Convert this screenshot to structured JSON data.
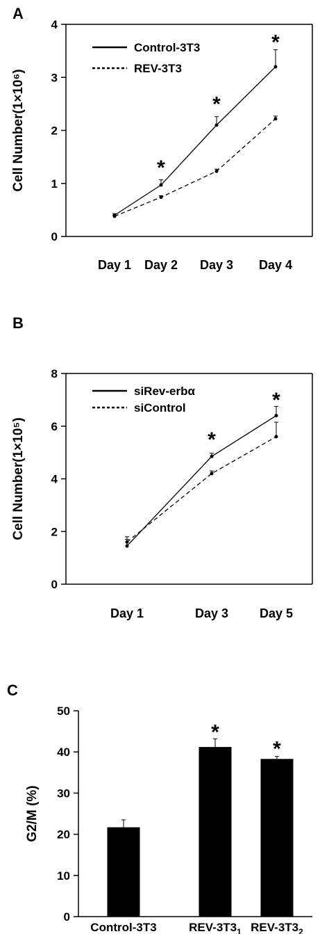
{
  "chart_data": [
    {
      "panel_label": "A",
      "type": "line",
      "ylabel": "Cell Number(1×10⁶)",
      "ylim": [
        0,
        4
      ],
      "yticks": [
        "0",
        "1",
        "2",
        "3",
        "4"
      ],
      "categories": [
        "Day 1",
        "Day 2",
        "Day 3",
        "Day 4"
      ],
      "legend_position": "top-left",
      "series": [
        {
          "name": "Control-3T3",
          "values": [
            0.4,
            0.97,
            2.1,
            3.2
          ],
          "errors": [
            0.03,
            0.1,
            0.16,
            0.32
          ],
          "dash": "solid"
        },
        {
          "name": "REV-3T3",
          "values": [
            0.38,
            0.74,
            1.23,
            2.22
          ],
          "errors": [
            0.02,
            0.03,
            0.04,
            0.05
          ],
          "dash": "dashed"
        }
      ],
      "annotations": [
        {
          "text": "*",
          "category": "Day 2",
          "y": 1.35
        },
        {
          "text": "*",
          "category": "Day 3",
          "y": 2.55
        },
        {
          "text": "*",
          "category": "Day 4",
          "y": 3.72
        }
      ]
    },
    {
      "panel_label": "B",
      "type": "line",
      "ylabel": "Cell Number(1×10⁵)",
      "ylim": [
        0,
        8
      ],
      "yticks": [
        "0",
        "2",
        "4",
        "6",
        "8"
      ],
      "categories": [
        "Day 1",
        "Day 3",
        "Day 5"
      ],
      "legend_position": "top-left",
      "series": [
        {
          "name": "siRev-erbα",
          "values": [
            1.45,
            4.85,
            6.4
          ],
          "errors": [
            0.25,
            0.12,
            0.35
          ],
          "dash": "solid"
        },
        {
          "name": "siControl",
          "values": [
            1.6,
            4.2,
            5.6
          ],
          "errors": [
            0.2,
            0.1,
            0.55
          ],
          "dash": "dashed"
        }
      ],
      "annotations": [
        {
          "text": "*",
          "category": "Day 3",
          "y": 5.6
        },
        {
          "text": "*",
          "category": "Day 5",
          "y": 7.1
        }
      ]
    },
    {
      "panel_label": "C",
      "type": "bar",
      "ylabel": "G2/M (%)",
      "ylim": [
        0,
        50
      ],
      "yticks": [
        "0",
        "10",
        "20",
        "30",
        "40",
        "50"
      ],
      "categories": [
        {
          "base": "Control-3T3",
          "sub": ""
        },
        {
          "base": "REV-3T3",
          "sub": "1"
        },
        {
          "base": "REV-3T3",
          "sub": "2"
        }
      ],
      "values": [
        21.7,
        41.2,
        38.3
      ],
      "errors": [
        1.8,
        2.0,
        0.6
      ],
      "bar_color": "#000000",
      "annotations": [
        {
          "text": "*",
          "category_index": 1,
          "y": 45.5
        },
        {
          "text": "*",
          "category_index": 2,
          "y": 41.5
        }
      ]
    }
  ]
}
